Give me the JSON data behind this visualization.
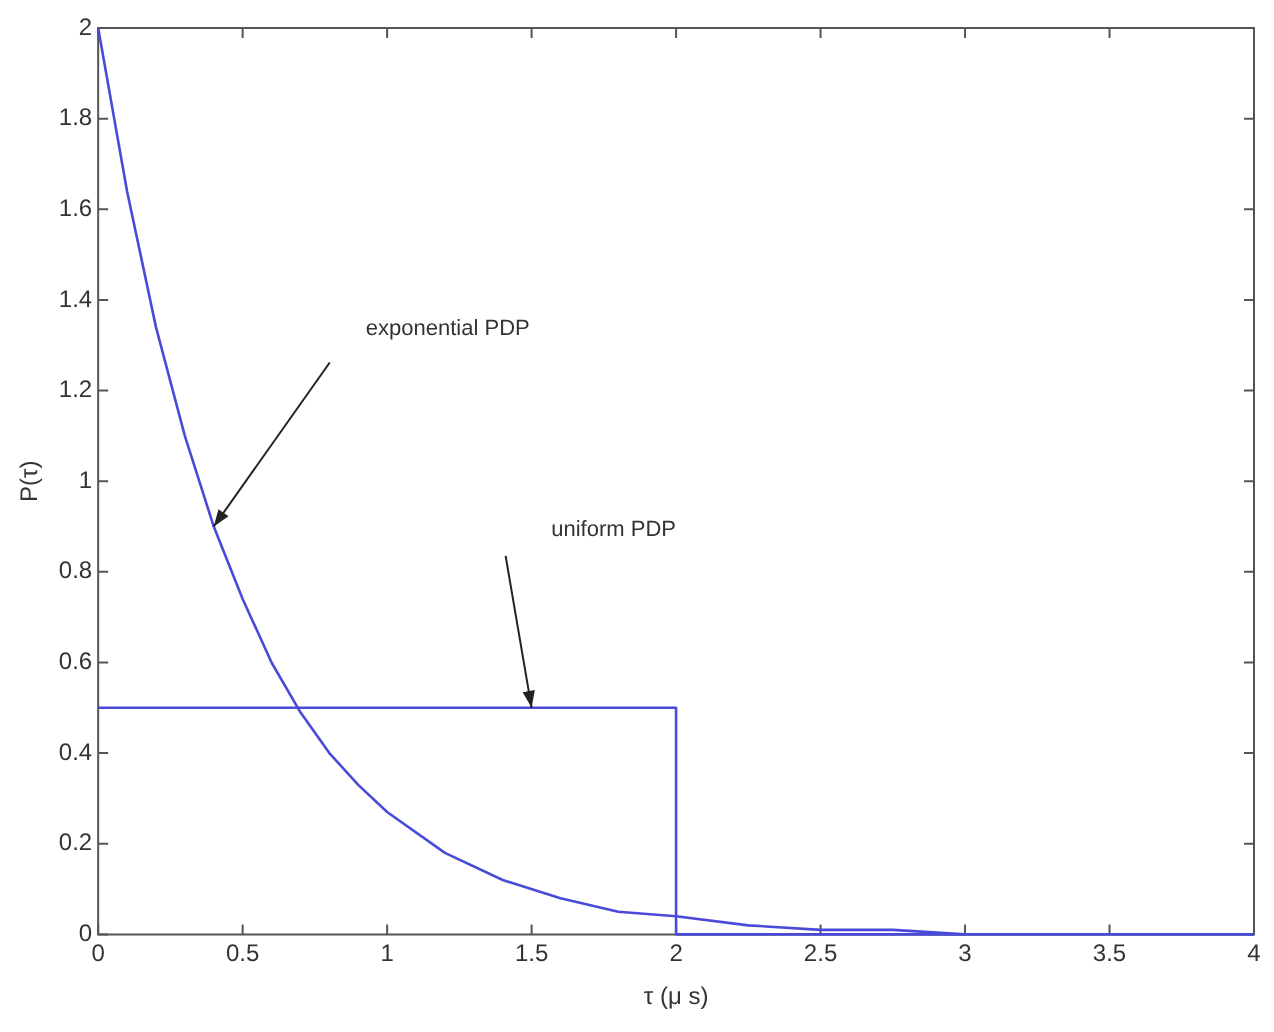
{
  "chart_data": {
    "type": "line",
    "xlabel": "τ (μ s)",
    "ylabel": "P(τ)",
    "xlim": [
      0,
      4
    ],
    "ylim": [
      0,
      2
    ],
    "xticks": [
      0,
      0.5,
      1,
      1.5,
      2,
      2.5,
      3,
      3.5,
      4
    ],
    "yticks": [
      0,
      0.2,
      0.4,
      0.6,
      0.8,
      1,
      1.2,
      1.4,
      1.6,
      1.8,
      2
    ],
    "series": [
      {
        "color": "#4a4ad8",
        "x": [
          0,
          0.1,
          0.2,
          0.3,
          0.4,
          0.5,
          0.6,
          0.7,
          0.8,
          0.9,
          1,
          1.2,
          1.4,
          1.6,
          1.8,
          2,
          2.25,
          2.5,
          2.75,
          3
        ],
        "values": [
          2,
          1.64,
          1.34,
          1.1,
          0.9,
          0.74,
          0.6,
          0.49,
          0.4,
          0.33,
          0.27,
          0.18,
          0.12,
          0.08,
          0.05,
          0.04,
          0.02,
          0.01,
          0.01,
          0
        ]
      },
      {
        "color": "#4a4ad8",
        "x": [
          0,
          2,
          2,
          4
        ],
        "values": [
          0.5,
          0.5,
          0,
          0
        ]
      }
    ],
    "marker": "none",
    "legend": false,
    "annotations": [
      "exponential PDP",
      "uniform PDP"
    ]
  }
}
